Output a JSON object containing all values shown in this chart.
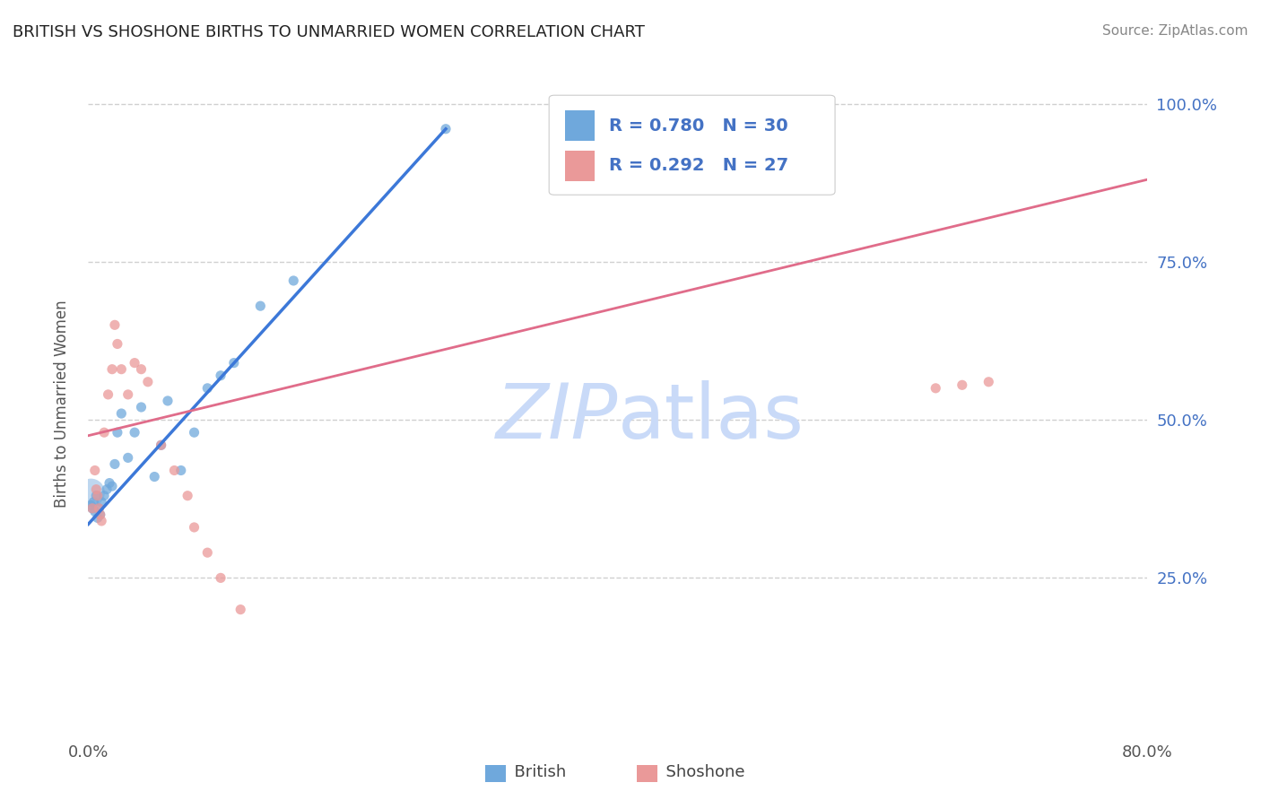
{
  "title": "BRITISH VS SHOSHONE BIRTHS TO UNMARRIED WOMEN CORRELATION CHART",
  "source_text": "Source: ZipAtlas.com",
  "ylabel": "Births to Unmarried Women",
  "xlim": [
    0.0,
    0.8
  ],
  "ylim": [
    0.0,
    1.05
  ],
  "yticks": [
    0.25,
    0.5,
    0.75,
    1.0
  ],
  "yticklabels_right": [
    "25.0%",
    "50.0%",
    "75.0%",
    "100.0%"
  ],
  "xtick_left": "0.0%",
  "xtick_right": "80.0%",
  "legend_r_blue": "R = 0.780",
  "legend_n_blue": "N = 30",
  "legend_r_pink": "R = 0.292",
  "legend_n_pink": "N = 27",
  "british_color": "#6fa8dc",
  "shoshone_color": "#ea9999",
  "blue_line_color": "#3c78d8",
  "pink_line_color": "#e06c8a",
  "watermark_color": "#c9daf8",
  "grid_color": "#d0d0d0",
  "background_color": "#ffffff",
  "title_color": "#222222",
  "axis_label_color": "#555555",
  "tick_label_color_right": "#4472c4",
  "legend_text_color": "#4472c4",
  "source_color": "#888888",
  "bottom_legend_labels": [
    "British",
    "Shoshone"
  ],
  "british_x": [
    0.002,
    0.003,
    0.004,
    0.005,
    0.006,
    0.007,
    0.008,
    0.009,
    0.01,
    0.012,
    0.014,
    0.016,
    0.018,
    0.02,
    0.022,
    0.025,
    0.03,
    0.035,
    0.04,
    0.05,
    0.055,
    0.06,
    0.07,
    0.08,
    0.09,
    0.1,
    0.11,
    0.13,
    0.155,
    0.27
  ],
  "british_y": [
    0.365,
    0.36,
    0.37,
    0.355,
    0.38,
    0.345,
    0.36,
    0.35,
    0.37,
    0.38,
    0.39,
    0.4,
    0.395,
    0.43,
    0.48,
    0.51,
    0.44,
    0.48,
    0.52,
    0.41,
    0.46,
    0.53,
    0.42,
    0.48,
    0.55,
    0.57,
    0.59,
    0.68,
    0.72,
    0.96
  ],
  "british_sizes": [
    60,
    60,
    60,
    60,
    60,
    60,
    60,
    60,
    60,
    60,
    60,
    60,
    60,
    60,
    60,
    60,
    60,
    60,
    60,
    60,
    60,
    60,
    60,
    60,
    60,
    60,
    60,
    60,
    60,
    60
  ],
  "british_big_x": [
    0.002
  ],
  "british_big_y": [
    0.385
  ],
  "british_big_size": 500,
  "shoshone_x": [
    0.003,
    0.005,
    0.006,
    0.007,
    0.008,
    0.009,
    0.01,
    0.012,
    0.015,
    0.018,
    0.02,
    0.022,
    0.025,
    0.03,
    0.035,
    0.04,
    0.045,
    0.055,
    0.065,
    0.075,
    0.08,
    0.09,
    0.1,
    0.115,
    0.64,
    0.66,
    0.68
  ],
  "shoshone_y": [
    0.36,
    0.42,
    0.39,
    0.38,
    0.36,
    0.35,
    0.34,
    0.48,
    0.54,
    0.58,
    0.65,
    0.62,
    0.58,
    0.54,
    0.59,
    0.58,
    0.56,
    0.46,
    0.42,
    0.38,
    0.33,
    0.29,
    0.25,
    0.2,
    0.55,
    0.555,
    0.56
  ],
  "shoshone_sizes": [
    60,
    60,
    60,
    60,
    60,
    60,
    60,
    60,
    60,
    60,
    60,
    60,
    60,
    60,
    60,
    60,
    60,
    60,
    60,
    60,
    60,
    60,
    60,
    60,
    60,
    60,
    60
  ],
  "blue_line_x0": 0.0,
  "blue_line_y0": 0.335,
  "blue_line_x1": 0.27,
  "blue_line_y1": 0.96,
  "pink_line_x0": 0.0,
  "pink_line_y0": 0.475,
  "pink_line_x1": 0.8,
  "pink_line_y1": 0.88
}
